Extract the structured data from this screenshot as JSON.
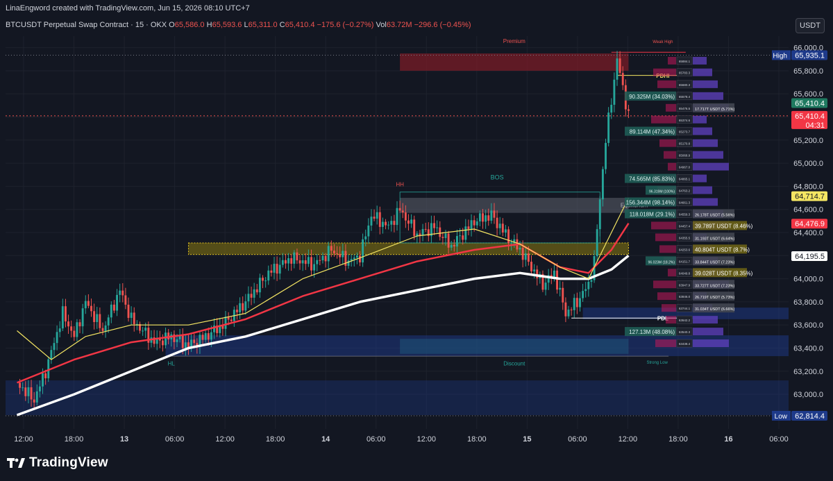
{
  "header": {
    "created_line": "LinaEngword created with TradingView.com, Jun 15, 2026 08:10 UTC+7",
    "symbol": "BTCUSDT Perpetual Swap Contract · 15 · OKX",
    "ohlc": {
      "o_label": "O",
      "o": "65,586.0",
      "h_label": "H",
      "h": "65,593.6",
      "l_label": "L",
      "l": "65,311.0",
      "c_label": "C",
      "c": "65,410.4",
      "change": "−175.6 (−0.27%)"
    },
    "vol": {
      "label": "Vol",
      "value": "63.72M",
      "change": "−296.6 (−0.45%)"
    },
    "currency_button": "USDT"
  },
  "colors": {
    "background": "#131722",
    "bull": "#26a69a",
    "bear": "#ef5350",
    "ema_fast": "#f5e663",
    "ema_mid": "#f23645",
    "ema_slow": "#ffffff",
    "premium_zone": "#8b1e2b",
    "discount_zone": "#1e3a8a",
    "grid": "#1e222d"
  },
  "chart_data": {
    "type": "line",
    "series_kind": "candlestick-with-moving-averages",
    "y_range": [
      62700,
      66100
    ],
    "y_ticks": [
      "66,000.0",
      "65,800.0",
      "65,600.0",
      "65,400.0",
      "65,200.0",
      "65,000.0",
      "64,800.0",
      "64,600.0",
      "64,400.0",
      "64,200.0",
      "64,000.0",
      "63,800.0",
      "63,600.0",
      "63,400.0",
      "63,200.0",
      "63,000.0"
    ],
    "x_ticks": [
      "12:00",
      "18:00",
      "13",
      "06:00",
      "12:00",
      "18:00",
      "14",
      "06:00",
      "12:00",
      "18:00",
      "15",
      "06:00",
      "12:00",
      "18:00",
      "16",
      "06:00"
    ],
    "x_tick_bold": [
      false,
      false,
      true,
      false,
      false,
      false,
      true,
      false,
      false,
      false,
      true,
      false,
      false,
      false,
      true,
      false
    ],
    "price_close_path": [
      {
        "t": 0,
        "p": 63100
      },
      {
        "t": 3,
        "p": 62950
      },
      {
        "t": 5,
        "p": 63200
      },
      {
        "t": 8,
        "p": 63700
      },
      {
        "t": 10,
        "p": 63500
      },
      {
        "t": 12,
        "p": 63800
      },
      {
        "t": 15,
        "p": 63550
      },
      {
        "t": 18,
        "p": 63900
      },
      {
        "t": 20,
        "p": 63650
      },
      {
        "t": 22,
        "p": 63550
      },
      {
        "t": 24,
        "p": 63450
      },
      {
        "t": 27,
        "p": 63500
      },
      {
        "t": 30,
        "p": 63420
      },
      {
        "t": 33,
        "p": 63500
      },
      {
        "t": 36,
        "p": 63600
      },
      {
        "t": 40,
        "p": 63800
      },
      {
        "t": 44,
        "p": 64050
      },
      {
        "t": 48,
        "p": 64180
      },
      {
        "t": 52,
        "p": 64120
      },
      {
        "t": 55,
        "p": 64250
      },
      {
        "t": 58,
        "p": 64150
      },
      {
        "t": 60,
        "p": 64200
      },
      {
        "t": 62,
        "p": 64550
      },
      {
        "t": 65,
        "p": 64450
      },
      {
        "t": 67,
        "p": 64600
      },
      {
        "t": 70,
        "p": 64380
      },
      {
        "t": 73,
        "p": 64450
      },
      {
        "t": 76,
        "p": 64280
      },
      {
        "t": 80,
        "p": 64500
      },
      {
        "t": 83,
        "p": 64550
      },
      {
        "t": 86,
        "p": 64350
      },
      {
        "t": 88,
        "p": 64250
      },
      {
        "t": 90,
        "p": 64100
      },
      {
        "t": 92,
        "p": 63950
      },
      {
        "t": 94,
        "p": 64050
      },
      {
        "t": 96,
        "p": 63700
      },
      {
        "t": 98,
        "p": 63800
      },
      {
        "t": 100,
        "p": 63950
      },
      {
        "t": 101,
        "p": 64150
      },
      {
        "t": 102,
        "p": 64700
      },
      {
        "t": 103,
        "p": 65200
      },
      {
        "t": 104,
        "p": 65550
      },
      {
        "t": 105,
        "p": 65900
      },
      {
        "t": 106,
        "p": 65650
      },
      {
        "t": 107,
        "p": 65410
      }
    ],
    "ema_fast_path": [
      {
        "t": 0,
        "p": 63550
      },
      {
        "t": 6,
        "p": 63300
      },
      {
        "t": 12,
        "p": 63500
      },
      {
        "t": 20,
        "p": 63600
      },
      {
        "t": 30,
        "p": 63600
      },
      {
        "t": 40,
        "p": 63700
      },
      {
        "t": 50,
        "p": 64000
      },
      {
        "t": 60,
        "p": 64180
      },
      {
        "t": 70,
        "p": 64370
      },
      {
        "t": 80,
        "p": 64430
      },
      {
        "t": 88,
        "p": 64300
      },
      {
        "t": 95,
        "p": 64100
      },
      {
        "t": 100,
        "p": 64000
      },
      {
        "t": 104,
        "p": 64400
      },
      {
        "t": 107,
        "p": 64700
      }
    ],
    "ema_mid_path": [
      {
        "t": 0,
        "p": 63100
      },
      {
        "t": 10,
        "p": 63300
      },
      {
        "t": 20,
        "p": 63450
      },
      {
        "t": 30,
        "p": 63520
      },
      {
        "t": 40,
        "p": 63650
      },
      {
        "t": 50,
        "p": 63850
      },
      {
        "t": 60,
        "p": 64000
      },
      {
        "t": 70,
        "p": 64150
      },
      {
        "t": 80,
        "p": 64250
      },
      {
        "t": 88,
        "p": 64300
      },
      {
        "t": 95,
        "p": 64100
      },
      {
        "t": 100,
        "p": 64050
      },
      {
        "t": 104,
        "p": 64250
      },
      {
        "t": 107,
        "p": 64480
      }
    ],
    "ema_slow_path": [
      {
        "t": 0,
        "p": 62820
      },
      {
        "t": 10,
        "p": 63000
      },
      {
        "t": 20,
        "p": 63200
      },
      {
        "t": 30,
        "p": 63400
      },
      {
        "t": 40,
        "p": 63500
      },
      {
        "t": 50,
        "p": 63650
      },
      {
        "t": 60,
        "p": 63800
      },
      {
        "t": 70,
        "p": 63900
      },
      {
        "t": 80,
        "p": 64000
      },
      {
        "t": 88,
        "p": 64050
      },
      {
        "t": 95,
        "p": 64000
      },
      {
        "t": 100,
        "p": 64000
      },
      {
        "t": 104,
        "p": 64080
      },
      {
        "t": 107,
        "p": 64200
      }
    ],
    "zones": [
      {
        "name": "Premium",
        "low": 65800,
        "high": 65950
      },
      {
        "name": "Equilibrium",
        "low": 64570,
        "high": 64700
      },
      {
        "name": "Discount",
        "low": 63350,
        "high": 63480
      },
      {
        "name": "Order block (yellow)",
        "low": 64210,
        "high": 64310
      },
      {
        "name": "Demand (blue, upper)",
        "low": 63650,
        "high": 63750
      },
      {
        "name": "Demand (blue, lower)",
        "low": 63330,
        "high": 63510
      },
      {
        "name": "Demand (blue, bottom)",
        "low": 62820,
        "high": 63120
      }
    ],
    "annotations": [
      "Premium",
      "Weak High",
      "PDHI",
      "HH",
      "BOS",
      "Equilibrium",
      "PDL",
      "HL",
      "Discount",
      "Strong Low"
    ],
    "price_labels": [
      {
        "text": "High",
        "value": "65,935.1"
      },
      {
        "text": "",
        "value": "65,410.4"
      },
      {
        "text": "",
        "value": "65,410.4",
        "sub": "04:31"
      },
      {
        "text": "",
        "value": "64,714.7"
      },
      {
        "text": "",
        "value": "64,476.9"
      },
      {
        "text": "",
        "value": "64,195.5"
      },
      {
        "text": "Low",
        "value": "62,814.4"
      }
    ],
    "volume_profile": [
      {
        "price": "65884.1",
        "left": "",
        "right": ""
      },
      {
        "price": "65783.3",
        "left": "",
        "right": ""
      },
      {
        "price": "65680.3",
        "left": "",
        "right": ""
      },
      {
        "price": "65578.4",
        "left": "90.325M (34.03%)",
        "right": ""
      },
      {
        "price": "65476.5",
        "left": "",
        "right": "17.717T USDT (5.71%)"
      },
      {
        "price": "65374.6",
        "left": "",
        "right": ""
      },
      {
        "price": "65273.7",
        "left": "89.114M (47.34%)",
        "right": ""
      },
      {
        "price": "65170.8",
        "left": "",
        "right": ""
      },
      {
        "price": "65068.9",
        "left": "",
        "right": ""
      },
      {
        "price": "64967.0",
        "left": "",
        "right": ""
      },
      {
        "price": "64865.1",
        "left": "74.565M (85.83%)",
        "right": ""
      },
      {
        "price": "64763.2",
        "left": "96.319M (100%)",
        "right": ""
      },
      {
        "price": "64661.3",
        "left": "156.344M (98.14%)",
        "right": ""
      },
      {
        "price": "64559.3",
        "left": "118.018M (29.1%)",
        "right": "26.178T USDT (5.56%)"
      },
      {
        "price": "64457.4",
        "left": "",
        "right": "39.789T USDT (8.46%)"
      },
      {
        "price": "64355.5",
        "left": "",
        "right": "31.193T USDT (6.64%)"
      },
      {
        "price": "64253.6",
        "left": "",
        "right": "40.804T USDT (8.7%)"
      },
      {
        "price": "64151.7",
        "left": "96.023M (18.2%)",
        "right": "33.844T USDT (7.23%)"
      },
      {
        "price": "64049.8",
        "left": "",
        "right": "39.028T USDT (8.35%)"
      },
      {
        "price": "63947.9",
        "left": "",
        "right": "33.727T USDT (7.23%)"
      },
      {
        "price": "63846.0",
        "left": "",
        "right": "26.719T USDT (5.73%)"
      },
      {
        "price": "63744.1",
        "left": "",
        "right": "31.034T USDT (6.66%)"
      },
      {
        "price": "63642.2",
        "left": "",
        "right": ""
      },
      {
        "price": "63540.3",
        "left": "127.13M (48.08%)",
        "right": ""
      },
      {
        "price": "63438.4",
        "left": "",
        "right": ""
      }
    ]
  },
  "branding": {
    "name": "TradingView"
  }
}
